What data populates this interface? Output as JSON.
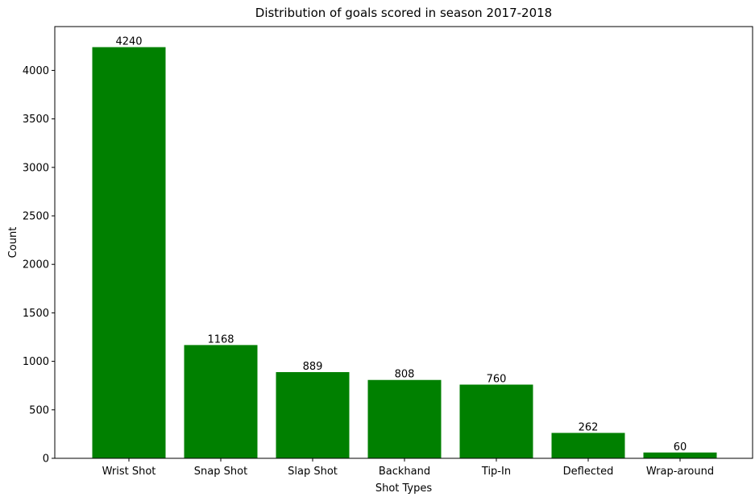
{
  "chart_data": {
    "type": "bar",
    "title": "Distribution of goals scored in season 2017-2018",
    "xlabel": "Shot Types",
    "ylabel": "Count",
    "categories": [
      "Wrist Shot",
      "Snap Shot",
      "Slap Shot",
      "Backhand",
      "Tip-In",
      "Deflected",
      "Wrap-around"
    ],
    "values": [
      4240,
      1168,
      889,
      808,
      760,
      262,
      60
    ],
    "data_labels": [
      "4240",
      "1168",
      "889",
      "808",
      "760",
      "262",
      "60"
    ],
    "ylim": [
      0,
      4452
    ],
    "yticks": [
      0,
      500,
      1000,
      1500,
      2000,
      2500,
      3000,
      3500,
      4000
    ],
    "bar_color": "#008000",
    "grid": false,
    "legend": "none"
  }
}
